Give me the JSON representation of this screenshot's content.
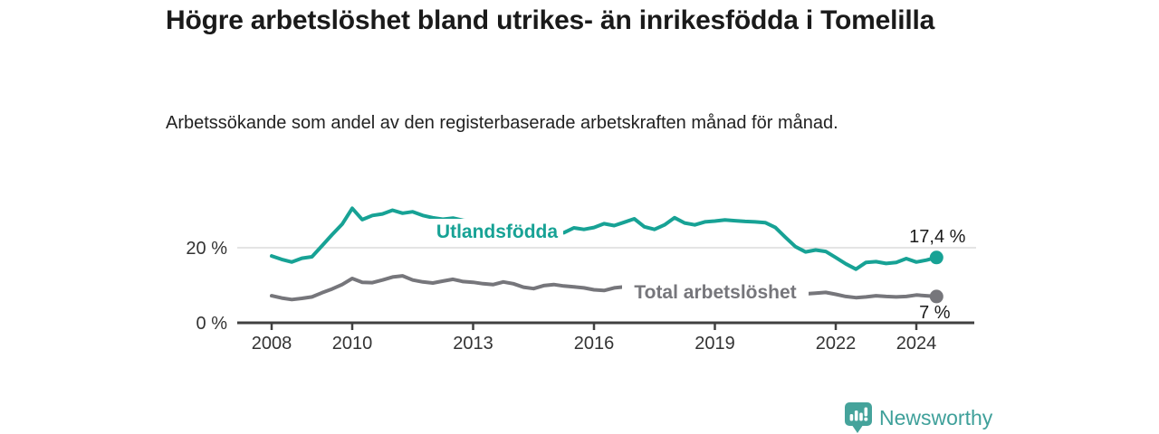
{
  "header": {
    "title": "Högre arbetslöshet bland utrikes- än inrikesfödda i Tomelilla",
    "subtitle": "Arbetssökande som andel av den registerbaserade arbetskraften månad för månad."
  },
  "branding": {
    "name": "Newsworthy",
    "logo_icon": "bar-chart-exclamation-badge",
    "color": "#3fa09a",
    "icon_color": "#45a39b"
  },
  "colors": {
    "foreign_born_line": "#17a295",
    "total_line": "#76767b",
    "axis": "#404040",
    "grid": "#dbdbdb",
    "text": "#1a1a1a"
  },
  "chart_data": {
    "type": "line",
    "title": "Högre arbetslöshet bland utrikes- än inrikesfödda i Tomelilla",
    "subtitle": "Arbetssökande som andel av den registerbaserade arbetskraften månad för månad.",
    "unit": "%",
    "xlim": [
      2007.2,
      2025.4
    ],
    "ylim": [
      0,
      33
    ],
    "grid": "horizontal line at 20 % only",
    "legend_position": "inline labels on lines, end-value labels at right",
    "x_ticks": [
      {
        "label": "2008",
        "year": 2008
      },
      {
        "label": "2010",
        "year": 2010
      },
      {
        "label": "2013",
        "year": 2013
      },
      {
        "label": "2016",
        "year": 2016
      },
      {
        "label": "2019",
        "year": 2019
      },
      {
        "label": "2022",
        "year": 2022
      },
      {
        "label": "2024",
        "year": 2024
      }
    ],
    "y_ticks": [
      {
        "label": "0 %",
        "value": 0
      },
      {
        "label": "20 %",
        "value": 20
      }
    ],
    "x": [
      2008,
      2008.25,
      2008.5,
      2008.75,
      2009,
      2009.25,
      2009.5,
      2009.75,
      2010,
      2010.25,
      2010.5,
      2010.75,
      2011,
      2011.25,
      2011.5,
      2011.75,
      2012,
      2012.25,
      2012.5,
      2012.75,
      2013,
      2013.25,
      2013.5,
      2013.75,
      2014,
      2014.25,
      2014.5,
      2014.75,
      2015,
      2015.25,
      2015.5,
      2015.75,
      2016,
      2016.25,
      2016.5,
      2016.75,
      2017,
      2017.25,
      2017.5,
      2017.75,
      2018,
      2018.25,
      2018.5,
      2018.75,
      2019,
      2019.25,
      2019.5,
      2019.75,
      2020,
      2020.25,
      2020.5,
      2020.75,
      2021,
      2021.25,
      2021.5,
      2021.75,
      2022,
      2022.25,
      2022.5,
      2022.75,
      2023,
      2023.25,
      2023.5,
      2023.75,
      2024,
      2024.25,
      2024.5
    ],
    "series": [
      {
        "name": "Utlandsfödda",
        "color": "#17a295",
        "end_label": "17,4 %",
        "end_value": 17.4,
        "values": [
          17.8,
          16.9,
          16.2,
          17.2,
          17.6,
          20.5,
          23.5,
          26.3,
          30.5,
          27.5,
          28.6,
          29.0,
          30.0,
          29.2,
          29.6,
          28.6,
          28.0,
          27.6,
          27.9,
          27.3,
          27.0,
          26.6,
          26.2,
          25.8,
          25.5,
          25.2,
          25.0,
          24.6,
          24.2,
          24.0,
          25.3,
          24.9,
          25.4,
          26.4,
          25.9,
          26.8,
          27.7,
          25.6,
          24.9,
          26.1,
          28.0,
          26.6,
          26.1,
          26.9,
          27.1,
          27.4,
          27.2,
          27.0,
          26.9,
          26.7,
          25.4,
          22.8,
          20.3,
          18.9,
          19.4,
          19.0,
          17.4,
          15.7,
          14.3,
          16.1,
          16.3,
          15.8,
          16.1,
          17.1,
          16.2,
          16.7,
          17.4
        ]
      },
      {
        "name": "Total arbetslöshet",
        "color": "#76767b",
        "end_label": "7 %",
        "end_value": 7,
        "values": [
          7.2,
          6.6,
          6.2,
          6.5,
          6.9,
          8.0,
          9.0,
          10.2,
          11.8,
          10.8,
          10.7,
          11.4,
          12.2,
          12.5,
          11.4,
          10.9,
          10.6,
          11.1,
          11.6,
          11.0,
          10.8,
          10.4,
          10.2,
          10.9,
          10.4,
          9.5,
          9.1,
          9.9,
          10.2,
          9.8,
          9.6,
          9.3,
          8.8,
          8.6,
          9.3,
          9.6,
          9.0,
          8.7,
          8.5,
          8.6,
          8.4,
          8.2,
          8.1,
          8.2,
          8.3,
          8.5,
          8.4,
          8.6,
          8.8,
          9.2,
          9.0,
          8.6,
          8.2,
          7.7,
          7.9,
          8.1,
          7.6,
          7.0,
          6.7,
          6.9,
          7.2,
          7.0,
          6.9,
          7.0,
          7.4,
          7.2,
          7.0
        ]
      }
    ]
  }
}
